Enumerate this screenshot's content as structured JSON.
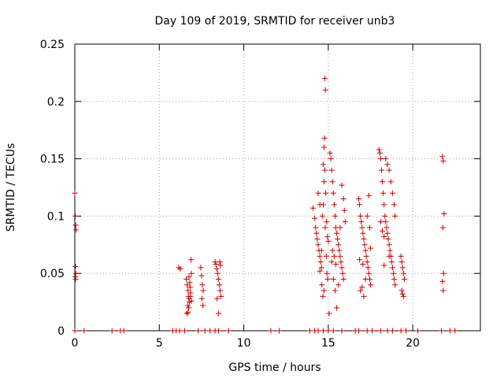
{
  "chart_data": {
    "type": "scatter",
    "title": "Day 109 of 2019, SRMTID for receiver unb3",
    "xlabel": "GPS time / hours",
    "ylabel": "SRMTID / TECUs",
    "xlim": [
      0,
      24
    ],
    "ylim": [
      0,
      0.25
    ],
    "x_ticks": [
      0,
      5,
      10,
      15,
      20
    ],
    "y_ticks": [
      0,
      0.05,
      0.1,
      0.15,
      0.2,
      0.25
    ],
    "x_tick_labels": [
      "0",
      "5",
      "10",
      "15",
      "20"
    ],
    "y_tick_labels": [
      "0",
      "0.05",
      "0.1",
      "0.15",
      "0.2",
      "0.25"
    ],
    "grid": true,
    "marker": "+",
    "marker_color": "#cc0000",
    "grid_color": "#a0a0a0",
    "series": [
      {
        "name": "SRMTID",
        "points": [
          [
            0.0,
            0.12
          ],
          [
            0.03,
            0.1
          ],
          [
            0.05,
            0.092
          ],
          [
            0.07,
            0.088
          ],
          [
            0.04,
            0.056
          ],
          [
            0.06,
            0.05
          ],
          [
            0.05,
            0.045
          ],
          [
            0.03,
            0.047
          ],
          [
            0.0,
            0.0
          ],
          [
            0.55,
            0.0
          ],
          [
            2.2,
            0.0
          ],
          [
            2.7,
            0.0
          ],
          [
            2.9,
            0.0
          ],
          [
            5.8,
            0.0
          ],
          [
            6.0,
            0.0
          ],
          [
            6.2,
            0.0
          ],
          [
            6.5,
            0.0
          ],
          [
            7.3,
            0.0
          ],
          [
            7.7,
            0.0
          ],
          [
            8.0,
            0.0
          ],
          [
            8.3,
            0.0
          ],
          [
            8.5,
            0.0
          ],
          [
            9.1,
            0.0
          ],
          [
            11.6,
            0.0
          ],
          [
            12.1,
            0.0
          ],
          [
            13.9,
            0.0
          ],
          [
            14.2,
            0.0
          ],
          [
            14.4,
            0.0
          ],
          [
            14.7,
            0.0
          ],
          [
            15.0,
            0.0
          ],
          [
            15.3,
            0.0
          ],
          [
            15.8,
            0.0
          ],
          [
            16.6,
            0.0
          ],
          [
            16.8,
            0.0
          ],
          [
            17.3,
            0.0
          ],
          [
            17.6,
            0.0
          ],
          [
            18.1,
            0.0
          ],
          [
            18.5,
            0.0
          ],
          [
            18.8,
            0.0
          ],
          [
            19.3,
            0.0
          ],
          [
            19.6,
            0.0
          ],
          [
            20.3,
            0.0
          ],
          [
            21.7,
            0.0
          ],
          [
            22.2,
            0.0
          ],
          [
            22.5,
            0.0
          ],
          [
            6.15,
            0.055
          ],
          [
            6.25,
            0.054
          ],
          [
            6.6,
            0.045
          ],
          [
            6.65,
            0.04
          ],
          [
            6.7,
            0.035
          ],
          [
            6.72,
            0.03
          ],
          [
            6.75,
            0.028
          ],
          [
            6.78,
            0.025
          ],
          [
            6.8,
            0.042
          ],
          [
            6.82,
            0.038
          ],
          [
            6.85,
            0.033
          ],
          [
            6.88,
            0.062
          ],
          [
            6.9,
            0.05
          ],
          [
            6.68,
            0.022
          ],
          [
            6.74,
            0.02
          ],
          [
            6.62,
            0.015
          ],
          [
            6.7,
            0.016
          ],
          [
            6.76,
            0.047
          ],
          [
            6.84,
            0.03
          ],
          [
            6.9,
            0.026
          ],
          [
            7.45,
            0.055
          ],
          [
            7.5,
            0.048
          ],
          [
            7.55,
            0.04
          ],
          [
            7.6,
            0.035
          ],
          [
            7.52,
            0.028
          ],
          [
            7.58,
            0.022
          ],
          [
            8.3,
            0.06
          ],
          [
            8.35,
            0.058
          ],
          [
            8.4,
            0.054
          ],
          [
            8.45,
            0.05
          ],
          [
            8.5,
            0.045
          ],
          [
            8.55,
            0.04
          ],
          [
            8.6,
            0.035
          ],
          [
            8.65,
            0.03
          ],
          [
            8.42,
            0.028
          ],
          [
            8.5,
            0.015
          ],
          [
            8.58,
            0.06
          ],
          [
            8.62,
            0.057
          ],
          [
            14.1,
            0.107
          ],
          [
            14.2,
            0.098
          ],
          [
            14.25,
            0.09
          ],
          [
            14.3,
            0.085
          ],
          [
            14.35,
            0.08
          ],
          [
            14.4,
            0.075
          ],
          [
            14.45,
            0.07
          ],
          [
            14.5,
            0.065
          ],
          [
            14.55,
            0.06
          ],
          [
            14.6,
            0.055
          ],
          [
            14.65,
            0.1
          ],
          [
            14.7,
            0.11
          ],
          [
            14.75,
            0.13
          ],
          [
            14.8,
            0.14
          ],
          [
            14.85,
            0.12
          ],
          [
            14.9,
            0.095
          ],
          [
            14.95,
            0.082
          ],
          [
            15.0,
            0.078
          ],
          [
            14.6,
            0.07
          ],
          [
            14.5,
            0.11
          ],
          [
            14.4,
            0.12
          ],
          [
            14.7,
            0.145
          ],
          [
            14.75,
            0.16
          ],
          [
            14.78,
            0.168
          ],
          [
            14.82,
            0.09
          ],
          [
            14.88,
            0.065
          ],
          [
            14.92,
            0.05
          ],
          [
            14.96,
            0.045
          ],
          [
            15.05,
            0.015
          ],
          [
            14.5,
            0.052
          ],
          [
            14.62,
            0.04
          ],
          [
            14.68,
            0.03
          ],
          [
            14.74,
            0.035
          ],
          [
            14.8,
            0.22
          ],
          [
            14.83,
            0.21
          ],
          [
            15.1,
            0.155
          ],
          [
            15.15,
            0.15
          ],
          [
            15.2,
            0.14
          ],
          [
            15.25,
            0.13
          ],
          [
            15.3,
            0.12
          ],
          [
            15.35,
            0.11
          ],
          [
            15.4,
            0.1
          ],
          [
            15.45,
            0.09
          ],
          [
            15.5,
            0.085
          ],
          [
            15.55,
            0.08
          ],
          [
            15.6,
            0.075
          ],
          [
            15.65,
            0.07
          ],
          [
            15.7,
            0.065
          ],
          [
            15.75,
            0.06
          ],
          [
            15.8,
            0.055
          ],
          [
            15.85,
            0.05
          ],
          [
            15.9,
            0.045
          ],
          [
            15.2,
            0.06
          ],
          [
            15.3,
            0.045
          ],
          [
            15.4,
            0.035
          ],
          [
            15.5,
            0.02
          ],
          [
            15.6,
            0.04
          ],
          [
            15.7,
            0.09
          ],
          [
            15.8,
            0.127
          ],
          [
            15.9,
            0.115
          ],
          [
            15.95,
            0.105
          ],
          [
            16.0,
            0.095
          ],
          [
            15.25,
            0.07
          ],
          [
            15.35,
            0.065
          ],
          [
            15.45,
            0.058
          ],
          [
            16.8,
            0.115
          ],
          [
            16.85,
            0.11
          ],
          [
            16.9,
            0.1
          ],
          [
            16.95,
            0.095
          ],
          [
            17.0,
            0.09
          ],
          [
            17.05,
            0.085
          ],
          [
            17.1,
            0.08
          ],
          [
            17.15,
            0.075
          ],
          [
            17.2,
            0.07
          ],
          [
            17.25,
            0.065
          ],
          [
            17.3,
            0.06
          ],
          [
            17.35,
            0.055
          ],
          [
            17.4,
            0.05
          ],
          [
            17.45,
            0.045
          ],
          [
            17.5,
            0.04
          ],
          [
            16.9,
            0.035
          ],
          [
            17.0,
            0.038
          ],
          [
            17.1,
            0.03
          ],
          [
            17.2,
            0.045
          ],
          [
            17.3,
            0.1
          ],
          [
            17.4,
            0.118
          ],
          [
            17.45,
            0.09
          ],
          [
            17.5,
            0.072
          ],
          [
            16.85,
            0.062
          ],
          [
            17.05,
            0.058
          ],
          [
            18.0,
            0.158
          ],
          [
            18.05,
            0.155
          ],
          [
            18.1,
            0.15
          ],
          [
            18.15,
            0.14
          ],
          [
            18.2,
            0.13
          ],
          [
            18.25,
            0.12
          ],
          [
            18.3,
            0.11
          ],
          [
            18.35,
            0.1
          ],
          [
            18.4,
            0.095
          ],
          [
            18.45,
            0.09
          ],
          [
            18.5,
            0.085
          ],
          [
            18.55,
            0.08
          ],
          [
            18.6,
            0.075
          ],
          [
            18.65,
            0.07
          ],
          [
            18.7,
            0.065
          ],
          [
            18.75,
            0.06
          ],
          [
            18.8,
            0.055
          ],
          [
            18.85,
            0.05
          ],
          [
            18.9,
            0.045
          ],
          [
            18.95,
            0.04
          ],
          [
            18.1,
            0.095
          ],
          [
            18.2,
            0.087
          ],
          [
            18.3,
            0.082
          ],
          [
            18.4,
            0.15
          ],
          [
            18.5,
            0.145
          ],
          [
            18.6,
            0.14
          ],
          [
            18.7,
            0.13
          ],
          [
            18.8,
            0.12
          ],
          [
            18.9,
            0.11
          ],
          [
            18.95,
            0.1
          ],
          [
            18.3,
            0.057
          ],
          [
            18.6,
            0.065
          ],
          [
            19.3,
            0.065
          ],
          [
            19.35,
            0.06
          ],
          [
            19.4,
            0.055
          ],
          [
            19.45,
            0.05
          ],
          [
            19.5,
            0.045
          ],
          [
            19.35,
            0.035
          ],
          [
            19.45,
            0.03
          ],
          [
            19.4,
            0.032
          ],
          [
            21.75,
            0.152
          ],
          [
            21.8,
            0.148
          ],
          [
            21.85,
            0.102
          ],
          [
            21.78,
            0.09
          ],
          [
            21.82,
            0.05
          ],
          [
            21.76,
            0.043
          ],
          [
            21.8,
            0.035
          ]
        ]
      }
    ]
  }
}
